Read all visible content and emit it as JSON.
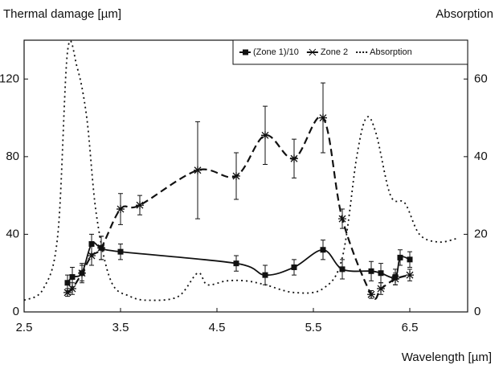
{
  "chart_data": {
    "type": "line",
    "y_label": "Thermal damage [µm]",
    "y2_label": "Absorption",
    "x_label": "Wavelength [µm]",
    "xlim": [
      2.5,
      7.1
    ],
    "xticks": [
      2.5,
      3.5,
      4.5,
      5.5,
      6.5
    ],
    "ylim": [
      0,
      140
    ],
    "yticks": [
      0,
      40,
      80,
      120
    ],
    "y2lim": [
      0,
      70
    ],
    "y2ticks": [
      0,
      20,
      40,
      60
    ],
    "legend": "upper right",
    "series": [
      {
        "name": "(Zone 1)/10",
        "color": "#111",
        "marker": "square",
        "dash": "solid",
        "x": [
          2.95,
          3.0,
          3.1,
          3.2,
          3.3,
          3.5,
          4.7,
          5.0,
          5.3,
          5.6,
          5.8,
          6.1,
          6.2,
          6.35,
          6.4,
          6.5
        ],
        "values": [
          15,
          18,
          20,
          35,
          33,
          31,
          25,
          19,
          23,
          32,
          22,
          21,
          20,
          18,
          28,
          27
        ],
        "errors": [
          4,
          5,
          5,
          5,
          6,
          4,
          4,
          5,
          4,
          5,
          5,
          5,
          5,
          4,
          4,
          4
        ]
      },
      {
        "name": "Zone 2",
        "color": "#111",
        "marker": "asterisk",
        "dash": "dashed",
        "x": [
          2.95,
          3.0,
          3.1,
          3.2,
          3.3,
          3.5,
          3.7,
          4.3,
          4.7,
          5.0,
          5.3,
          5.6,
          5.8,
          6.1,
          6.2,
          6.35,
          6.5
        ],
        "values": [
          10,
          12,
          20,
          29,
          33,
          53,
          55,
          73,
          70,
          91,
          79,
          100,
          48,
          9,
          12,
          17,
          19
        ],
        "errors": [
          2,
          3,
          4,
          5,
          6,
          8,
          5,
          25,
          12,
          15,
          10,
          18,
          5,
          2,
          3,
          3,
          3
        ]
      },
      {
        "name": "Absorption",
        "color": "#111",
        "marker": "none",
        "dash": "dotted",
        "axis": "y2",
        "x": [
          2.5,
          2.7,
          2.85,
          2.95,
          3.05,
          3.15,
          3.25,
          3.4,
          3.6,
          3.8,
          4.1,
          4.3,
          4.4,
          4.6,
          4.8,
          5.0,
          5.3,
          5.6,
          5.8,
          5.95,
          6.05,
          6.15,
          6.3,
          6.45,
          6.6,
          6.8,
          7.0
        ],
        "values": [
          3,
          6,
          20,
          67,
          63,
          50,
          25,
          8,
          4,
          3,
          4,
          10,
          7,
          8,
          8,
          7,
          5,
          6,
          14,
          40,
          50,
          46,
          30,
          28,
          20,
          18,
          19
        ]
      }
    ]
  }
}
